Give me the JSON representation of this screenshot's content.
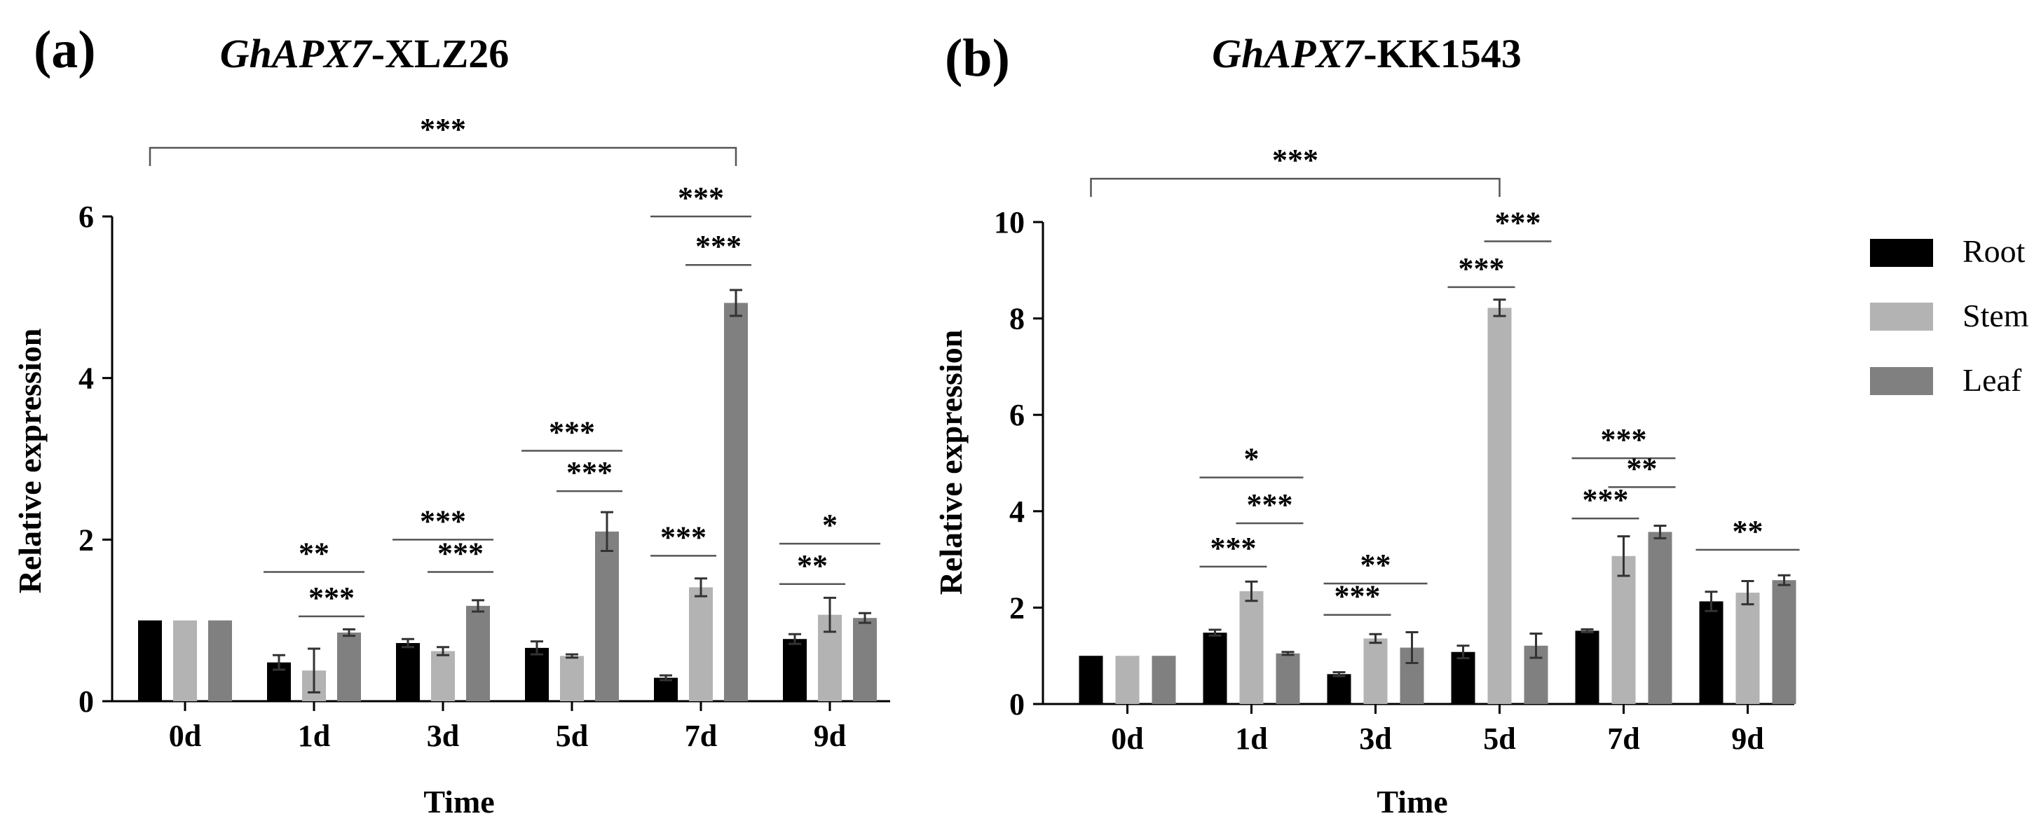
{
  "colors": {
    "Root": "#000000",
    "Stem": "#b3b3b3",
    "Leaf": "#808080",
    "axis": "#000000",
    "bracket": "#555555"
  },
  "legend": {
    "entries": [
      "Root",
      "Stem",
      "Leaf"
    ]
  },
  "chart_data": [
    {
      "type": "bar",
      "panel_label": "(a)",
      "title_gene": "GhAPX7",
      "title_suffix": "-XLZ26",
      "xlabel": "Time",
      "ylabel": "Relative expression",
      "ylim": [
        0,
        6
      ],
      "yticks": [
        0,
        2,
        4,
        6
      ],
      "categories": [
        "0d",
        "1d",
        "3d",
        "5d",
        "7d",
        "9d"
      ],
      "series": [
        {
          "name": "Root",
          "values": [
            1.0,
            0.48,
            0.72,
            0.66,
            0.29,
            0.77
          ],
          "errors": [
            0.0,
            0.09,
            0.05,
            0.08,
            0.03,
            0.06
          ]
        },
        {
          "name": "Stem",
          "values": [
            1.0,
            0.38,
            0.62,
            0.56,
            1.41,
            1.07
          ],
          "errors": [
            0.0,
            0.27,
            0.05,
            0.02,
            0.11,
            0.21
          ]
        },
        {
          "name": "Leaf",
          "values": [
            1.0,
            0.85,
            1.18,
            2.1,
            4.93,
            1.03
          ],
          "errors": [
            0.0,
            0.04,
            0.07,
            0.24,
            0.16,
            0.06
          ]
        }
      ],
      "significance": [
        {
          "label": "***",
          "from": [
            0,
            0
          ],
          "to": [
            4,
            2
          ],
          "y": 6.85,
          "bracket": true
        },
        {
          "label": "**",
          "from": [
            1,
            0
          ],
          "to": [
            1,
            2
          ],
          "y": 1.6
        },
        {
          "label": "***",
          "from": [
            1,
            1
          ],
          "to": [
            1,
            2
          ],
          "y": 1.05
        },
        {
          "label": "***",
          "from": [
            2,
            0
          ],
          "to": [
            2,
            2
          ],
          "y": 2.0
        },
        {
          "label": "***",
          "from": [
            2,
            1
          ],
          "to": [
            2,
            2
          ],
          "y": 1.6
        },
        {
          "label": "***",
          "from": [
            3,
            0
          ],
          "to": [
            3,
            2
          ],
          "y": 3.1
        },
        {
          "label": "***",
          "from": [
            3,
            1
          ],
          "to": [
            3,
            2
          ],
          "y": 2.6
        },
        {
          "label": "***",
          "from": [
            4,
            0
          ],
          "to": [
            4,
            1
          ],
          "y": 1.8
        },
        {
          "label": "***",
          "from": [
            4,
            0
          ],
          "to": [
            4,
            2
          ],
          "y": 6.0
        },
        {
          "label": "***",
          "from": [
            4,
            1
          ],
          "to": [
            4,
            2
          ],
          "y": 5.4
        },
        {
          "label": "**",
          "from": [
            5,
            0
          ],
          "to": [
            5,
            1
          ],
          "y": 1.45
        },
        {
          "label": "*",
          "from": [
            5,
            0
          ],
          "to": [
            5,
            2
          ],
          "y": 1.95
        }
      ]
    },
    {
      "type": "bar",
      "panel_label": "(b)",
      "title_gene": "GhAPX7",
      "title_suffix": "-KK1543",
      "xlabel": "Time",
      "ylabel": "Relative expression",
      "ylim": [
        0,
        10
      ],
      "yticks": [
        0,
        2,
        4,
        6,
        8,
        10
      ],
      "categories": [
        "0d",
        "1d",
        "3d",
        "5d",
        "7d",
        "9d"
      ],
      "series": [
        {
          "name": "Root",
          "values": [
            1.0,
            1.48,
            0.62,
            1.08,
            1.52,
            2.13
          ],
          "errors": [
            0.0,
            0.06,
            0.04,
            0.13,
            0.03,
            0.2
          ]
        },
        {
          "name": "Stem",
          "values": [
            1.0,
            2.34,
            1.36,
            8.22,
            3.07,
            2.31
          ],
          "errors": [
            0.0,
            0.2,
            0.09,
            0.17,
            0.41,
            0.24
          ]
        },
        {
          "name": "Leaf",
          "values": [
            1.0,
            1.05,
            1.17,
            1.21,
            3.57,
            2.57
          ],
          "errors": [
            0.0,
            0.03,
            0.32,
            0.25,
            0.13,
            0.1
          ]
        }
      ],
      "significance": [
        {
          "label": "***",
          "from": [
            0,
            0
          ],
          "to": [
            3,
            1
          ],
          "y": 10.9,
          "bracket": true
        },
        {
          "label": "*",
          "from": [
            1,
            0
          ],
          "to": [
            1,
            2
          ],
          "y": 4.7
        },
        {
          "label": "***",
          "from": [
            1,
            1
          ],
          "to": [
            1,
            2
          ],
          "y": 3.75
        },
        {
          "label": "***",
          "from": [
            1,
            0
          ],
          "to": [
            1,
            1
          ],
          "y": 2.85
        },
        {
          "label": "**",
          "from": [
            2,
            0
          ],
          "to": [
            2,
            2
          ],
          "y": 2.5
        },
        {
          "label": "***",
          "from": [
            2,
            0
          ],
          "to": [
            2,
            1
          ],
          "y": 1.85
        },
        {
          "label": "***",
          "from": [
            3,
            0
          ],
          "to": [
            3,
            1
          ],
          "y": 8.65
        },
        {
          "label": "***",
          "from": [
            3,
            1
          ],
          "to": [
            3,
            2
          ],
          "y": 9.6
        },
        {
          "label": "***",
          "from": [
            4,
            0
          ],
          "to": [
            4,
            2
          ],
          "y": 5.1
        },
        {
          "label": "**",
          "from": [
            4,
            1
          ],
          "to": [
            4,
            2
          ],
          "y": 4.5
        },
        {
          "label": "***",
          "from": [
            4,
            0
          ],
          "to": [
            4,
            1
          ],
          "y": 3.85
        },
        {
          "label": "**",
          "from": [
            5,
            0
          ],
          "to": [
            5,
            2
          ],
          "y": 3.2
        }
      ]
    }
  ]
}
